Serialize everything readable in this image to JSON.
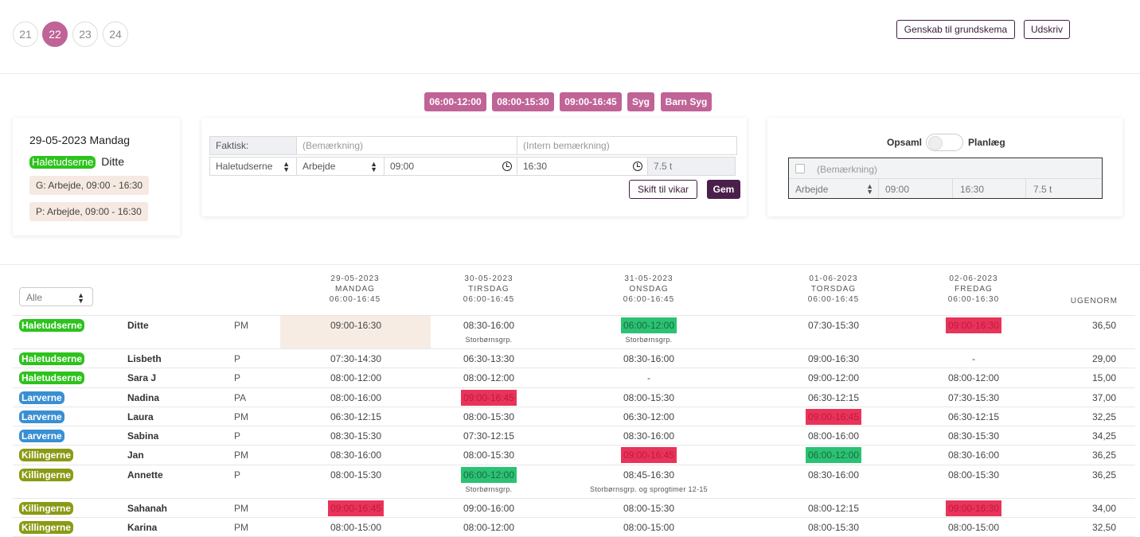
{
  "weeks": [
    "21",
    "22",
    "23",
    "24"
  ],
  "active_week": "22",
  "toolbar": {
    "reset_label": "Genskab til grundskema",
    "print_label": "Udskriv"
  },
  "quick_buttons": [
    "06:00-12:00",
    "08:00-15:30",
    "09:00-16:45",
    "Syg",
    "Barn Syg"
  ],
  "selected": {
    "date": "29-05-2023 Mandag",
    "group": "Haletudserne",
    "name": "Ditte",
    "chips": [
      "G: Arbejde, 09:00 - 16:30",
      "P: Arbejde, 09:00 - 16:30"
    ]
  },
  "form": {
    "label": "Faktisk:",
    "remark_placeholder": "(Bemærkning)",
    "internal_placeholder": "(Intern bemærkning)",
    "group": "Haletudserne",
    "type": "Arbejde",
    "start": "09:00",
    "end": "16:30",
    "hours": "7.5 t",
    "substitute_label": "Skift til vikar",
    "save_label": "Gem"
  },
  "plan": {
    "left_label": "Opsaml",
    "right_label": "Planlæg",
    "remark_placeholder": "(Bemærkning)",
    "type": "Arbejde",
    "start": "09:00",
    "end": "16:30",
    "hours": "7.5 t"
  },
  "filter": {
    "value": "Alle"
  },
  "days": [
    {
      "date": "29-05-2023",
      "day": "MANDAG",
      "hours": "06:00-16:45"
    },
    {
      "date": "30-05-2023",
      "day": "TIRSDAG",
      "hours": "06:00-16:45"
    },
    {
      "date": "31-05-2023",
      "day": "ONSDAG",
      "hours": "06:00-16:45"
    },
    {
      "date": "01-06-2023",
      "day": "TORSDAG",
      "hours": "06:00-16:45"
    },
    {
      "date": "02-06-2023",
      "day": "FREDAG",
      "hours": "06:00-16:30"
    }
  ],
  "norm_header": "UGENORM",
  "colors": {
    "accent": "#c06397",
    "dark": "#4a1f4a",
    "red": "#e8345a",
    "green": "#2bc275"
  },
  "rows": [
    {
      "group": "Haletudserne",
      "color": "green",
      "name": "Ditte",
      "role": "PM",
      "shifts": [
        "09:00-16:30",
        "08:30-16:00",
        "06:00-12:00",
        "07:30-15:30",
        "09:00-16:30"
      ],
      "hl": [
        "",
        "",
        "green",
        "",
        "red"
      ],
      "notes": [
        "",
        "Storbørnsgrp.",
        "Storbørnsgrp.",
        "",
        ""
      ],
      "norm": "36,50"
    },
    {
      "group": "Haletudserne",
      "color": "green",
      "name": "Lisbeth",
      "role": "P",
      "shifts": [
        "07:30-14:30",
        "06:30-13:30",
        "08:30-16:00",
        "09:00-16:30",
        "-"
      ],
      "hl": [
        "",
        "",
        "",
        "",
        ""
      ],
      "notes": [
        "",
        "",
        "",
        "",
        ""
      ],
      "norm": "29,00"
    },
    {
      "group": "Haletudserne",
      "color": "green",
      "name": "Sara J",
      "role": "P",
      "shifts": [
        "08:00-12:00",
        "08:00-12:00",
        "-",
        "09:00-12:00",
        "08:00-12:00"
      ],
      "hl": [
        "",
        "",
        "",
        "",
        ""
      ],
      "notes": [
        "",
        "",
        "",
        "",
        ""
      ],
      "norm": "15,00"
    },
    {
      "group": "Larverne",
      "color": "blue",
      "name": "Nadina",
      "role": "PA",
      "shifts": [
        "08:00-16:00",
        "09:00-16:45",
        "08:00-15:30",
        "06:30-12:15",
        "07:30-15:30"
      ],
      "hl": [
        "",
        "red",
        "",
        "",
        ""
      ],
      "notes": [
        "",
        "",
        "",
        "",
        ""
      ],
      "norm": "37,00"
    },
    {
      "group": "Larverne",
      "color": "blue",
      "name": "Laura",
      "role": "PM",
      "shifts": [
        "06:30-12:15",
        "08:00-15:30",
        "06:30-12:00",
        "09:00-16:45",
        "06:30-12:15"
      ],
      "hl": [
        "",
        "",
        "",
        "red",
        ""
      ],
      "notes": [
        "",
        "",
        "",
        "",
        ""
      ],
      "norm": "32,25"
    },
    {
      "group": "Larverne",
      "color": "blue",
      "name": "Sabina",
      "role": "P",
      "shifts": [
        "08:30-15:30",
        "07:30-12:15",
        "08:30-16:00",
        "08:00-16:00",
        "08:30-15:30"
      ],
      "hl": [
        "",
        "",
        "",
        "",
        ""
      ],
      "notes": [
        "",
        "",
        "",
        "",
        ""
      ],
      "norm": "34,25"
    },
    {
      "group": "Killingerne",
      "color": "olive",
      "name": "Jan",
      "role": "PM",
      "shifts": [
        "08:30-16:00",
        "08:00-15:30",
        "09:00-16:45",
        "06:00-12:00",
        "08:30-16:00"
      ],
      "hl": [
        "",
        "",
        "red",
        "green",
        ""
      ],
      "notes": [
        "",
        "",
        "",
        "",
        ""
      ],
      "norm": "36,25"
    },
    {
      "group": "Killingerne",
      "color": "olive",
      "name": "Annette",
      "role": "P",
      "shifts": [
        "08:00-15:30",
        "06:00-12:00",
        "08:45-16:30",
        "08:30-16:00",
        "08:00-15:30"
      ],
      "hl": [
        "",
        "green",
        "",
        "",
        ""
      ],
      "notes": [
        "",
        "Storbørnsgrp.",
        "Storbørnsgrp. og sprogtimer 12-15",
        "",
        ""
      ],
      "norm": "36,25"
    },
    {
      "group": "Killingerne",
      "color": "olive",
      "name": "Sahanah",
      "role": "PM",
      "shifts": [
        "09:00-16:45",
        "09:00-16:00",
        "08:00-15:30",
        "08:00-12:15",
        "09:00-16:30"
      ],
      "hl": [
        "red",
        "",
        "",
        "",
        "red"
      ],
      "notes": [
        "",
        "",
        "",
        "",
        ""
      ],
      "norm": "34,00"
    },
    {
      "group": "Killingerne",
      "color": "olive",
      "name": "Karina",
      "role": "PM",
      "shifts": [
        "08:00-15:00",
        "08:00-12:00",
        "08:00-15:00",
        "08:00-15:30",
        "08:00-15:00"
      ],
      "hl": [
        "",
        "",
        "",
        "",
        ""
      ],
      "notes": [
        "",
        "",
        "",
        "",
        ""
      ],
      "norm": "32,50"
    }
  ]
}
